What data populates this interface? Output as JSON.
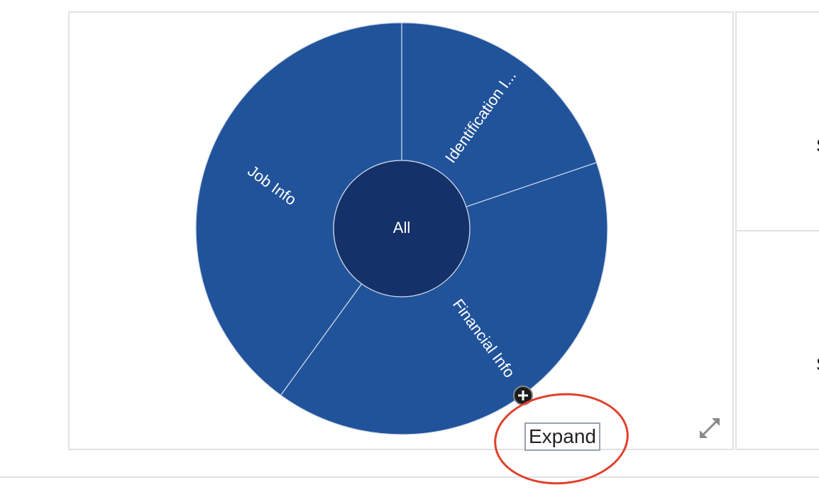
{
  "chart_data": {
    "type": "sunburst",
    "root": {
      "label": "All"
    },
    "segments": [
      {
        "label": "Identification I...",
        "value": 19.8
      },
      {
        "label": "Financial Info",
        "value": 40.2
      },
      {
        "label": "Job Info",
        "value": 40.0
      }
    ],
    "colors": {
      "root": "#15316a",
      "segment": "#21539a",
      "separator": "#cfd9ea"
    }
  },
  "tooltip": {
    "text": "Expand"
  },
  "side_cards": [
    {
      "letter": "S"
    },
    {
      "letter": "S"
    }
  ],
  "icons": {
    "expand_node": "plus-circle-icon",
    "fullscreen": "fullscreen-arrows-icon"
  }
}
